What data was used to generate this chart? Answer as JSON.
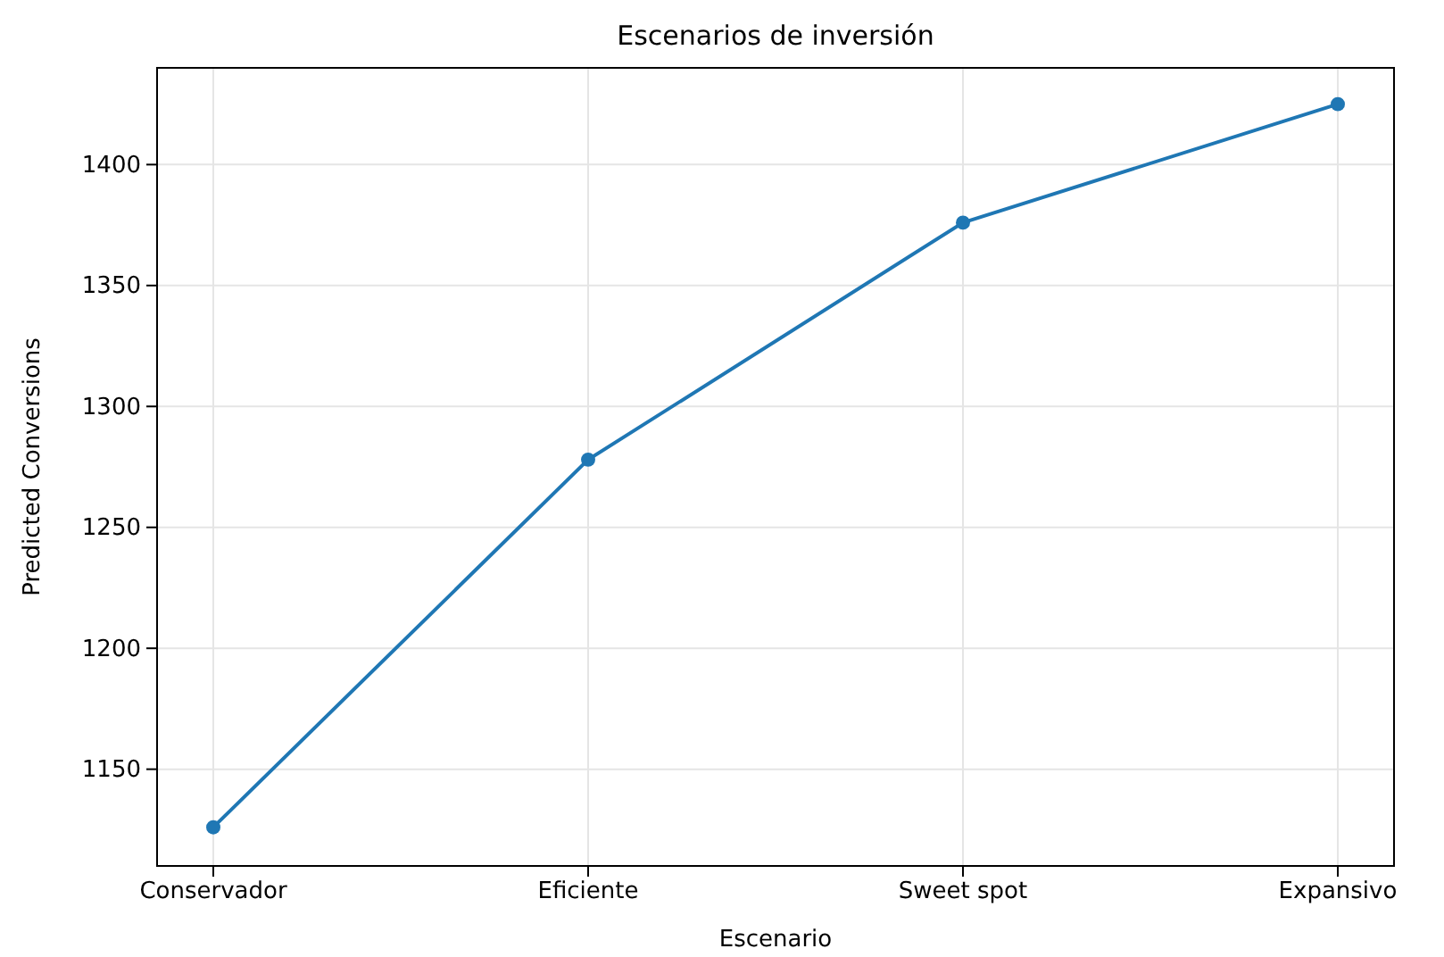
{
  "chart_data": {
    "type": "line",
    "title": "Escenarios de inversión",
    "xlabel": "Escenario",
    "ylabel": "Predicted Conversions",
    "categories": [
      "Conservador",
      "Eficiente",
      "Sweet spot",
      "Expansivo"
    ],
    "series": [
      {
        "color": "#1f77b4",
        "values": [
          1126,
          1278,
          1376,
          1425
        ]
      }
    ],
    "ylim": [
      1110,
      1440
    ],
    "yticks": [
      1150,
      1200,
      1250,
      1300,
      1350,
      1400
    ],
    "grid": true,
    "marker": "circle",
    "line_style": "solid"
  }
}
